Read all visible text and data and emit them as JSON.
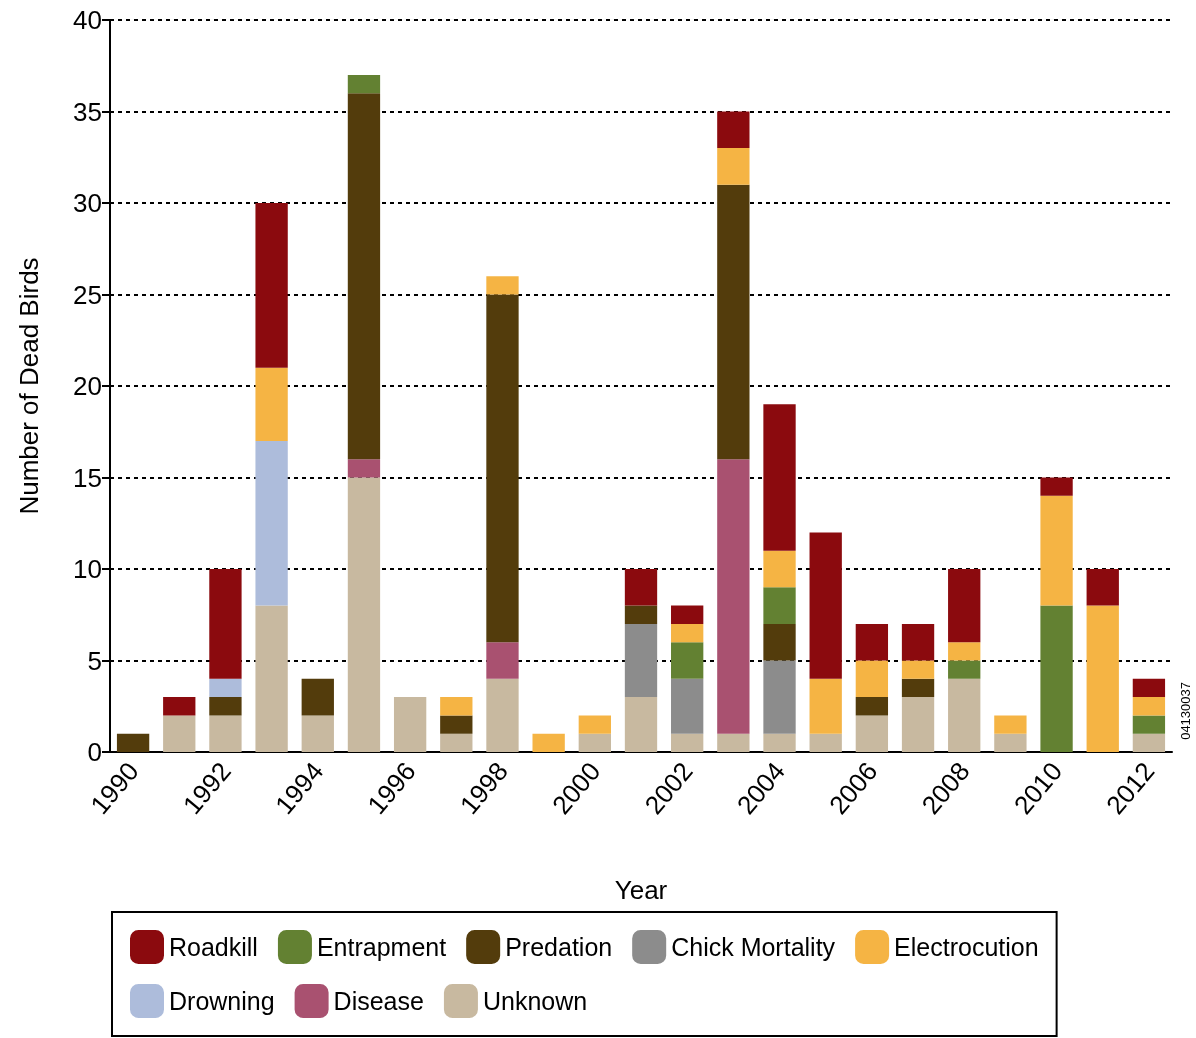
{
  "chart_data": {
    "type": "bar",
    "stacked": true,
    "xlabel": "Year",
    "ylabel": "Number of Dead Birds",
    "categories": [
      "1990",
      null,
      "1992",
      null,
      "1994",
      null,
      "1996",
      null,
      "1998",
      null,
      "2000",
      null,
      "2002",
      null,
      "2004",
      null,
      "2006",
      null,
      "2008",
      null,
      "2010",
      null,
      "2012"
    ],
    "series": [
      {
        "name": "Unknown",
        "color": "#c8b9a0",
        "values": [
          null,
          2,
          2,
          8,
          2,
          15,
          3,
          1,
          4,
          null,
          1,
          3,
          1,
          1,
          1,
          1,
          2,
          3,
          4,
          1,
          null,
          null,
          1
        ]
      },
      {
        "name": "Chick Mortality",
        "color": "#8c8c8c",
        "values": [
          null,
          null,
          null,
          null,
          null,
          null,
          null,
          null,
          null,
          null,
          null,
          4,
          3,
          null,
          4,
          null,
          null,
          null,
          null,
          null,
          null,
          null,
          null
        ]
      },
      {
        "name": "Disease",
        "color": "#a95170",
        "values": [
          null,
          null,
          null,
          null,
          null,
          1,
          null,
          null,
          2,
          null,
          null,
          null,
          null,
          15,
          null,
          null,
          null,
          null,
          null,
          null,
          null,
          null,
          null
        ]
      },
      {
        "name": "Predation",
        "color": "#533c0c",
        "values": [
          1,
          null,
          1,
          null,
          2,
          20,
          null,
          1,
          19,
          null,
          null,
          1,
          null,
          15,
          2,
          null,
          1,
          1,
          null,
          null,
          null,
          null,
          null
        ]
      },
      {
        "name": "Drowning",
        "color": "#adbcdb",
        "values": [
          null,
          null,
          1,
          9,
          null,
          null,
          null,
          null,
          null,
          null,
          null,
          null,
          null,
          null,
          null,
          null,
          null,
          null,
          null,
          null,
          null,
          null,
          null
        ]
      },
      {
        "name": "Entrapment",
        "color": "#638132",
        "values": [
          null,
          null,
          null,
          null,
          null,
          1,
          null,
          null,
          null,
          null,
          null,
          null,
          2,
          null,
          2,
          null,
          null,
          null,
          1,
          null,
          8,
          null,
          1
        ]
      },
      {
        "name": "Electrocution",
        "color": "#f5b444",
        "values": [
          null,
          null,
          null,
          4,
          null,
          null,
          null,
          1,
          1,
          1,
          1,
          null,
          1,
          2,
          2,
          3,
          2,
          1,
          1,
          1,
          6,
          8,
          1
        ]
      },
      {
        "name": "Roadkill",
        "color": "#8b0a0e",
        "values": [
          null,
          1,
          6,
          9,
          null,
          null,
          null,
          null,
          null,
          null,
          null,
          2,
          1,
          2,
          8,
          8,
          2,
          2,
          4,
          null,
          1,
          2,
          1
        ]
      }
    ],
    "ylim": [
      0,
      40
    ],
    "yticks": [
      0,
      5,
      10,
      15,
      20,
      25,
      30,
      35,
      40
    ],
    "grid": "y",
    "legend": "bottom",
    "annotations": [
      "04130037"
    ]
  }
}
